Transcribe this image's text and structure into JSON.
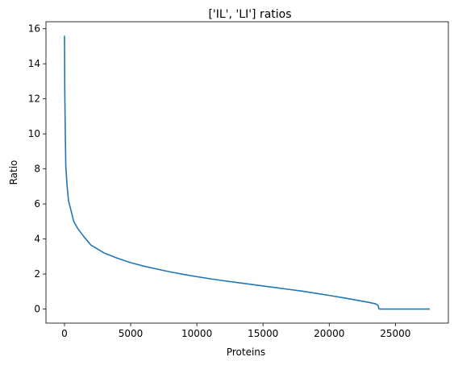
{
  "chart_data": {
    "type": "line",
    "title": "['IL', 'LI'] ratios",
    "xlabel": "Proteins",
    "ylabel": "Ratio",
    "xlim": [
      -1400,
      29000
    ],
    "ylim": [
      -0.8,
      16.4
    ],
    "xticks": [
      0,
      5000,
      10000,
      15000,
      20000,
      25000
    ],
    "yticks": [
      0,
      2,
      4,
      6,
      8,
      10,
      12,
      14,
      16
    ],
    "xtick_labels": [
      "0",
      "5000",
      "10000",
      "15000",
      "20000",
      "25000"
    ],
    "ytick_labels": [
      "0",
      "2",
      "4",
      "6",
      "8",
      "10",
      "12",
      "14",
      "16"
    ],
    "grid": false,
    "legend": "none",
    "line_color": "#1f77b4",
    "series": [
      {
        "x": [
          0,
          20,
          60,
          100,
          200,
          300,
          500,
          700,
          1000,
          1500,
          2000,
          3000,
          4000,
          5000,
          6000,
          7000,
          8000,
          9000,
          10000,
          11000,
          12000,
          13000,
          14000,
          15000,
          16000,
          17000,
          18000,
          19000,
          20000,
          21000,
          22000,
          23000,
          23500,
          23700,
          23750,
          23800,
          25000,
          27600
        ],
        "y": [
          15.6,
          12.5,
          10.0,
          8.1,
          7.0,
          6.2,
          5.6,
          5.0,
          4.6,
          4.1,
          3.65,
          3.2,
          2.9,
          2.65,
          2.45,
          2.28,
          2.12,
          1.98,
          1.85,
          1.73,
          1.62,
          1.52,
          1.42,
          1.32,
          1.22,
          1.12,
          1.02,
          0.9,
          0.78,
          0.65,
          0.52,
          0.38,
          0.3,
          0.2,
          0.02,
          0.0,
          0.0,
          0.0
        ]
      }
    ]
  }
}
